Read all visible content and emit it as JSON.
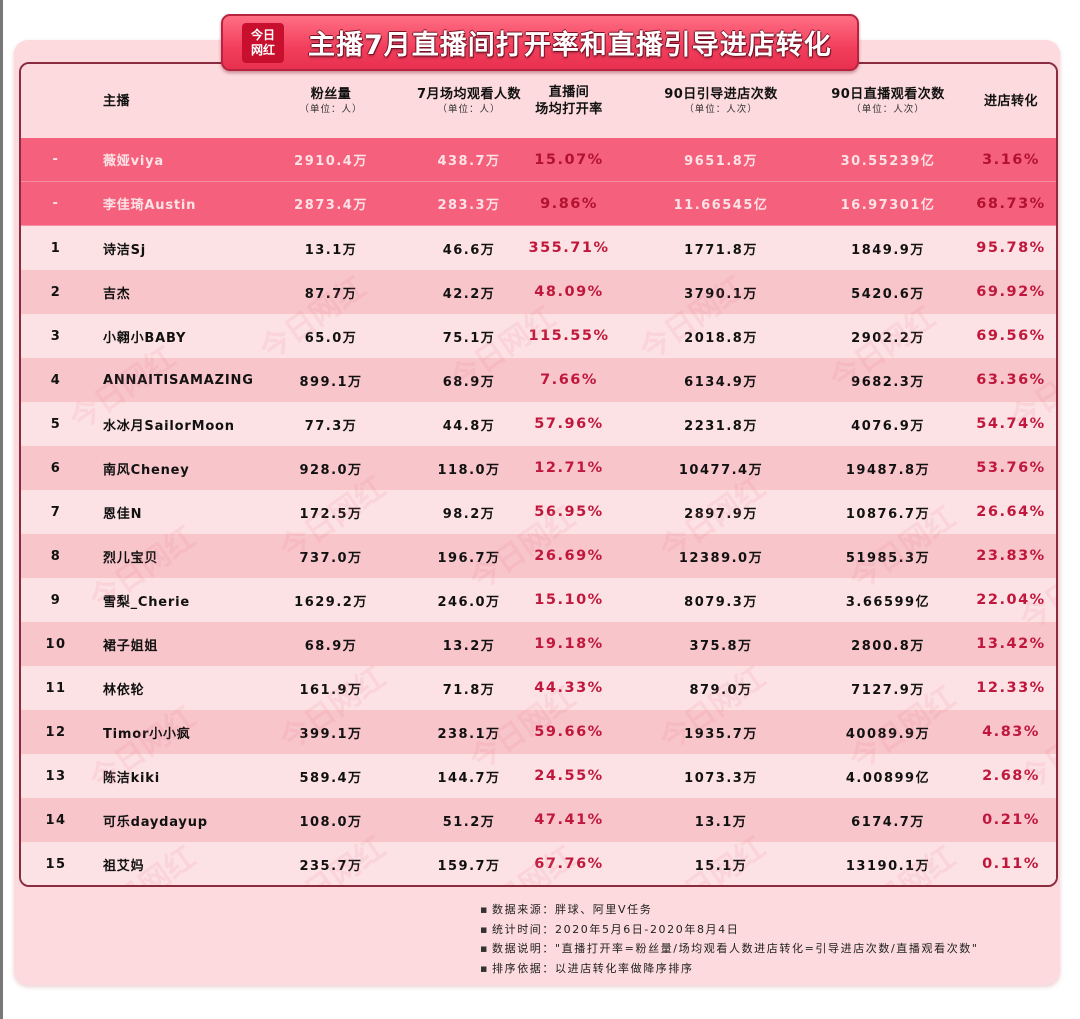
{
  "title": {
    "logo_line1": "今日",
    "logo_line2": "网红",
    "text": "主播7月直播间打开率和直播引导进店转化"
  },
  "table": {
    "headers": {
      "name": {
        "main": "主播"
      },
      "fans": {
        "main": "粉丝量",
        "sub": "（单位：人）"
      },
      "avg_viewers": {
        "main": "7月场均观看人数",
        "sub": "（单位：人）"
      },
      "open_rate": {
        "main": "直播间",
        "main2": "场均打开率"
      },
      "guide_visits": {
        "main": "90日引导进店次数",
        "sub": "（单位：人次）"
      },
      "live_views": {
        "main": "90日直播观看次数",
        "sub": "（单位：人次）"
      },
      "conversion": {
        "main": "进店转化"
      }
    },
    "highlight_rows": [
      {
        "rank": "-",
        "name": "薇娅viya",
        "fans": "2910.4万",
        "avg_viewers": "438.7万",
        "open_rate": "15.07%",
        "guide_visits": "9651.8万",
        "live_views": "30.55239亿",
        "conversion": "3.16%"
      },
      {
        "rank": "-",
        "name": "李佳琦Austin",
        "fans": "2873.4万",
        "avg_viewers": "283.3万",
        "open_rate": "9.86%",
        "guide_visits": "11.66545亿",
        "live_views": "16.97301亿",
        "conversion": "68.73%"
      }
    ],
    "rows": [
      {
        "rank": "1",
        "name": "诗洁Sj",
        "fans": "13.1万",
        "avg_viewers": "46.6万",
        "open_rate": "355.71%",
        "guide_visits": "1771.8万",
        "live_views": "1849.9万",
        "conversion": "95.78%"
      },
      {
        "rank": "2",
        "name": "吉杰",
        "fans": "87.7万",
        "avg_viewers": "42.2万",
        "open_rate": "48.09%",
        "guide_visits": "3790.1万",
        "live_views": "5420.6万",
        "conversion": "69.92%"
      },
      {
        "rank": "3",
        "name": "小翱小BABY",
        "fans": "65.0万",
        "avg_viewers": "75.1万",
        "open_rate": "115.55%",
        "guide_visits": "2018.8万",
        "live_views": "2902.2万",
        "conversion": "69.56%"
      },
      {
        "rank": "4",
        "name": "ANNAITISAMAZING",
        "fans": "899.1万",
        "avg_viewers": "68.9万",
        "open_rate": "7.66%",
        "guide_visits": "6134.9万",
        "live_views": "9682.3万",
        "conversion": "63.36%"
      },
      {
        "rank": "5",
        "name": "水冰月SailorMoon",
        "fans": "77.3万",
        "avg_viewers": "44.8万",
        "open_rate": "57.96%",
        "guide_visits": "2231.8万",
        "live_views": "4076.9万",
        "conversion": "54.74%"
      },
      {
        "rank": "6",
        "name": "南风Cheney",
        "fans": "928.0万",
        "avg_viewers": "118.0万",
        "open_rate": "12.71%",
        "guide_visits": "10477.4万",
        "live_views": "19487.8万",
        "conversion": "53.76%"
      },
      {
        "rank": "7",
        "name": "恩佳N",
        "fans": "172.5万",
        "avg_viewers": "98.2万",
        "open_rate": "56.95%",
        "guide_visits": "2897.9万",
        "live_views": "10876.7万",
        "conversion": "26.64%"
      },
      {
        "rank": "8",
        "name": "烈儿宝贝",
        "fans": "737.0万",
        "avg_viewers": "196.7万",
        "open_rate": "26.69%",
        "guide_visits": "12389.0万",
        "live_views": "51985.3万",
        "conversion": "23.83%"
      },
      {
        "rank": "9",
        "name": "雪梨_Cherie",
        "fans": "1629.2万",
        "avg_viewers": "246.0万",
        "open_rate": "15.10%",
        "guide_visits": "8079.3万",
        "live_views": "3.66599亿",
        "conversion": "22.04%"
      },
      {
        "rank": "10",
        "name": "裙子姐姐",
        "fans": "68.9万",
        "avg_viewers": "13.2万",
        "open_rate": "19.18%",
        "guide_visits": "375.8万",
        "live_views": "2800.8万",
        "conversion": "13.42%"
      },
      {
        "rank": "11",
        "name": "林依轮",
        "fans": "161.9万",
        "avg_viewers": "71.8万",
        "open_rate": "44.33%",
        "guide_visits": "879.0万",
        "live_views": "7127.9万",
        "conversion": "12.33%"
      },
      {
        "rank": "12",
        "name": "Timor小小疯",
        "fans": "399.1万",
        "avg_viewers": "238.1万",
        "open_rate": "59.66%",
        "guide_visits": "1935.7万",
        "live_views": "40089.9万",
        "conversion": "4.83%"
      },
      {
        "rank": "13",
        "name": "陈洁kiki",
        "fans": "589.4万",
        "avg_viewers": "144.7万",
        "open_rate": "24.55%",
        "guide_visits": "1073.3万",
        "live_views": "4.00899亿",
        "conversion": "2.68%"
      },
      {
        "rank": "14",
        "name": "可乐daydayup",
        "fans": "108.0万",
        "avg_viewers": "51.2万",
        "open_rate": "47.41%",
        "guide_visits": "13.1万",
        "live_views": "6174.7万",
        "conversion": "0.21%"
      },
      {
        "rank": "15",
        "name": "祖艾妈",
        "fans": "235.7万",
        "avg_viewers": "159.7万",
        "open_rate": "67.76%",
        "guide_visits": "15.1万",
        "live_views": "13190.1万",
        "conversion": "0.11%"
      }
    ]
  },
  "notes": [
    "数据来源：胖球、阿里V任务",
    "统计时间：2020年5月6日-2020年8月4日",
    "数据说明：\"直播打开率=粉丝量/场均观看人数进店转化=引导进店次数/直播观看次数\"",
    "排序依据：以进店转化率做降序排序"
  ],
  "watermark_text": "今日网红",
  "colors": {
    "highlight_row": "#f5617c",
    "accent_red": "#c0183c",
    "banner": "#f23e5c",
    "background_pink": "#fcdade"
  }
}
